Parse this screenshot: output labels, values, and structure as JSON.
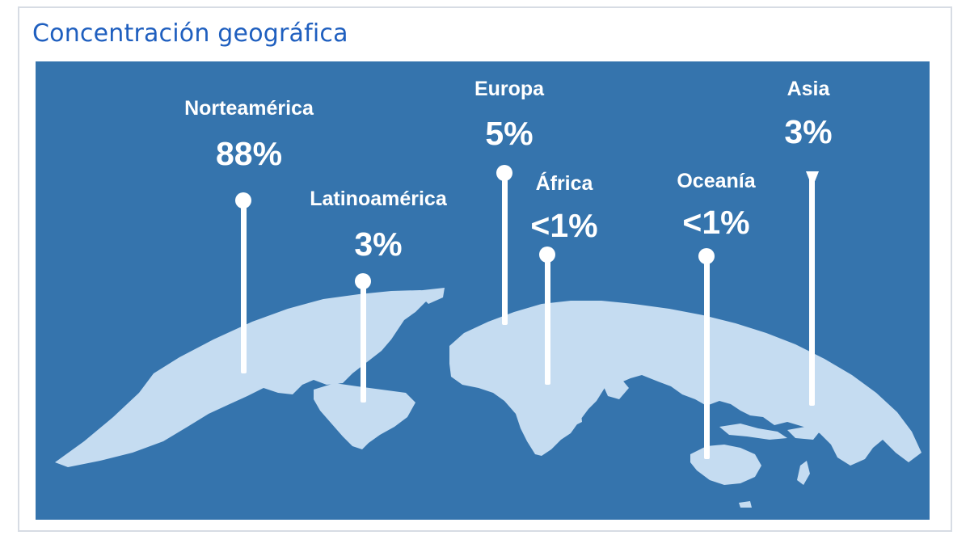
{
  "title": "Concentración geográfica",
  "colors": {
    "ocean": "#3574ad",
    "land": "#c5dcf1",
    "title": "#1f5fbf",
    "pins": "#ffffff"
  },
  "regions": [
    {
      "name": "Norteamérica",
      "value": "88%"
    },
    {
      "name": "Latinoamérica",
      "value": "3%"
    },
    {
      "name": "Europa",
      "value": "5%"
    },
    {
      "name": "África",
      "value": "<1%"
    },
    {
      "name": "Oceanía",
      "value": "<1%"
    },
    {
      "name": "Asia",
      "value": "3%"
    }
  ]
}
